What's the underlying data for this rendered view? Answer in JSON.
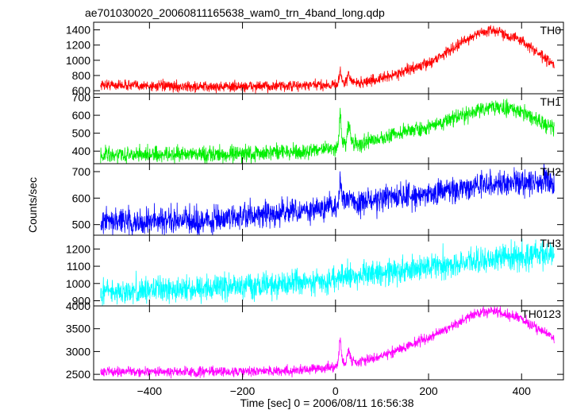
{
  "chart_data": {
    "type": "line",
    "title": "ae701030020_20060811165638_wam0_trn_4band_long.qdp",
    "xlabel": "Time [sec] 0 = 2006/08/11 16:56:38",
    "ylabel": "Counts/sec",
    "xlim": [
      -520,
      490
    ],
    "x_ticks": [
      -400,
      -200,
      0,
      200,
      400
    ],
    "x_tick_labels": [
      "−400",
      "−200",
      "0",
      "200",
      "400"
    ],
    "x_range_data": [
      -505,
      470
    ],
    "grid": false,
    "panels": [
      {
        "name": "TH0",
        "color": "#ff0000",
        "ylim": [
          560,
          1500
        ],
        "yticks": [
          600,
          800,
          1000,
          1200,
          1400
        ],
        "noise": 35,
        "profile": [
          [
            -505,
            680
          ],
          [
            -300,
            650
          ],
          [
            -100,
            660
          ],
          [
            0,
            680
          ],
          [
            5,
            700
          ],
          [
            10,
            880
          ],
          [
            14,
            720
          ],
          [
            22,
            700
          ],
          [
            28,
            820
          ],
          [
            35,
            720
          ],
          [
            50,
            700
          ],
          [
            100,
            760
          ],
          [
            200,
            960
          ],
          [
            300,
            1340
          ],
          [
            340,
            1400
          ],
          [
            400,
            1260
          ],
          [
            470,
            930
          ]
        ]
      },
      {
        "name": "TH1",
        "color": "#00ee00",
        "ylim": [
          330,
          720
        ],
        "yticks": [
          400,
          500,
          600,
          700
        ],
        "noise": 22,
        "profile": [
          [
            -505,
            380
          ],
          [
            -300,
            380
          ],
          [
            -100,
            395
          ],
          [
            0,
            410
          ],
          [
            5,
            430
          ],
          [
            10,
            620
          ],
          [
            14,
            470
          ],
          [
            22,
            420
          ],
          [
            28,
            560
          ],
          [
            35,
            460
          ],
          [
            50,
            440
          ],
          [
            100,
            470
          ],
          [
            200,
            540
          ],
          [
            300,
            620
          ],
          [
            340,
            650
          ],
          [
            400,
            620
          ],
          [
            470,
            530
          ]
        ]
      },
      {
        "name": "TH2",
        "color": "#0000ff",
        "ylim": [
          460,
          730
        ],
        "yticks": [
          500,
          600,
          700
        ],
        "noise": 25,
        "profile": [
          [
            -505,
            510
          ],
          [
            -300,
            515
          ],
          [
            -100,
            545
          ],
          [
            0,
            570
          ],
          [
            5,
            580
          ],
          [
            10,
            680
          ],
          [
            14,
            600
          ],
          [
            50,
            580
          ],
          [
            100,
            600
          ],
          [
            200,
            615
          ],
          [
            300,
            650
          ],
          [
            400,
            660
          ],
          [
            470,
            665
          ]
        ]
      },
      {
        "name": "TH3",
        "color": "#00ffff",
        "ylim": [
          870,
          1280
        ],
        "yticks": [
          900,
          1000,
          1100,
          1200
        ],
        "noise": 38,
        "profile": [
          [
            -505,
            950
          ],
          [
            -300,
            970
          ],
          [
            -100,
            1000
          ],
          [
            0,
            1030
          ],
          [
            100,
            1060
          ],
          [
            200,
            1100
          ],
          [
            300,
            1130
          ],
          [
            400,
            1160
          ],
          [
            470,
            1180
          ]
        ]
      },
      {
        "name": "TH0123",
        "color": "#ff00ff",
        "ylim": [
          2380,
          4000
        ],
        "yticks": [
          2500,
          3000,
          3500,
          4000
        ],
        "noise": 55,
        "profile": [
          [
            -505,
            2560
          ],
          [
            -300,
            2550
          ],
          [
            -100,
            2580
          ],
          [
            0,
            2650
          ],
          [
            5,
            2700
          ],
          [
            10,
            3330
          ],
          [
            14,
            2800
          ],
          [
            22,
            2720
          ],
          [
            28,
            3050
          ],
          [
            35,
            2800
          ],
          [
            50,
            2760
          ],
          [
            100,
            2900
          ],
          [
            200,
            3300
          ],
          [
            300,
            3820
          ],
          [
            340,
            3900
          ],
          [
            400,
            3720
          ],
          [
            470,
            3300
          ]
        ]
      }
    ]
  }
}
